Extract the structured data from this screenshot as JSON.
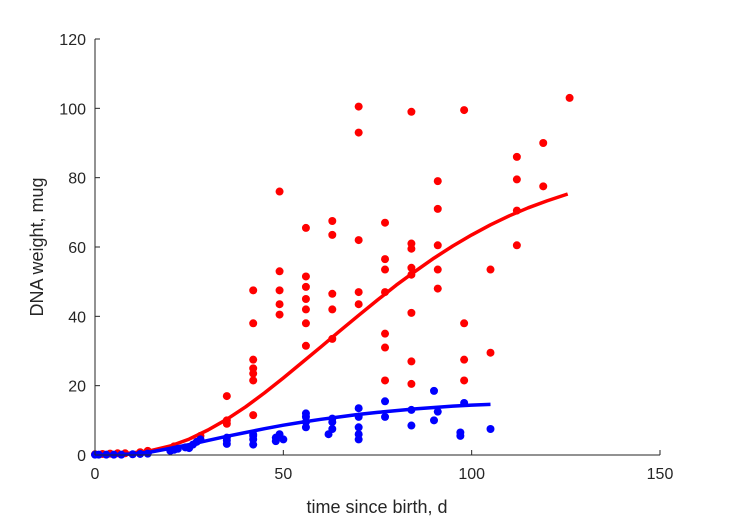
{
  "chart_data": {
    "type": "scatter",
    "xlabel": "time since birth, d",
    "ylabel": "DNA weight, mug",
    "xlim": [
      0,
      150
    ],
    "ylim": [
      0,
      120
    ],
    "xticks": [
      0,
      50,
      100,
      150
    ],
    "yticks": [
      0,
      20,
      40,
      60,
      80,
      100,
      120
    ],
    "grid": false,
    "legend": "none",
    "series": [
      {
        "color": "#ff0000",
        "points": [
          [
            0,
            0.2
          ],
          [
            2,
            0.3
          ],
          [
            4,
            0.4
          ],
          [
            6,
            0.5
          ],
          [
            8,
            0.5
          ],
          [
            12,
            0.8
          ],
          [
            14,
            1.2
          ],
          [
            21,
            2.5
          ],
          [
            28,
            5.5
          ],
          [
            35,
            17
          ],
          [
            35,
            10
          ],
          [
            35,
            9
          ],
          [
            42,
            47.5
          ],
          [
            42,
            38
          ],
          [
            42,
            27.5
          ],
          [
            42,
            25
          ],
          [
            42,
            23.5
          ],
          [
            42,
            21.5
          ],
          [
            42,
            11.5
          ],
          [
            49,
            76
          ],
          [
            49,
            53
          ],
          [
            49,
            47.5
          ],
          [
            49,
            43.5
          ],
          [
            49,
            40.5
          ],
          [
            56,
            65.5
          ],
          [
            56,
            51.5
          ],
          [
            56,
            48.5
          ],
          [
            56,
            45
          ],
          [
            56,
            42
          ],
          [
            56,
            38
          ],
          [
            56,
            31.5
          ],
          [
            63,
            67.5
          ],
          [
            63,
            63.5
          ],
          [
            63,
            46.5
          ],
          [
            63,
            42
          ],
          [
            63,
            33.5
          ],
          [
            70,
            100.5
          ],
          [
            70,
            93
          ],
          [
            70,
            62
          ],
          [
            70,
            47
          ],
          [
            70,
            43.5
          ],
          [
            77,
            67
          ],
          [
            77,
            56.5
          ],
          [
            77,
            53.5
          ],
          [
            77,
            47
          ],
          [
            77,
            35
          ],
          [
            77,
            31
          ],
          [
            77,
            21.5
          ],
          [
            84,
            99
          ],
          [
            84,
            61
          ],
          [
            84,
            59.5
          ],
          [
            84,
            54
          ],
          [
            84,
            52
          ],
          [
            84,
            41
          ],
          [
            84,
            27
          ],
          [
            84,
            20.5
          ],
          [
            91,
            79
          ],
          [
            91,
            71
          ],
          [
            91,
            60.5
          ],
          [
            91,
            53.5
          ],
          [
            91,
            48
          ],
          [
            98,
            99.5
          ],
          [
            98,
            38
          ],
          [
            98,
            27.5
          ],
          [
            98,
            21.5
          ],
          [
            105,
            53.5
          ],
          [
            105,
            29.5
          ],
          [
            112,
            86
          ],
          [
            112,
            79.5
          ],
          [
            112,
            70.5
          ],
          [
            112,
            60.5
          ],
          [
            119,
            90
          ],
          [
            119,
            77.5
          ],
          [
            126,
            103
          ]
        ],
        "fit": [
          [
            0,
            0
          ],
          [
            5,
            0.2
          ],
          [
            10,
            0.6
          ],
          [
            15,
            1.3
          ],
          [
            20,
            2.6
          ],
          [
            25,
            4.6
          ],
          [
            30,
            7.2
          ],
          [
            35,
            10.3
          ],
          [
            40,
            13.9
          ],
          [
            45,
            17.9
          ],
          [
            50,
            22.2
          ],
          [
            55,
            26.7
          ],
          [
            60,
            31.2
          ],
          [
            65,
            35.8
          ],
          [
            70,
            40.3
          ],
          [
            75,
            44.7
          ],
          [
            80,
            49.0
          ],
          [
            85,
            53.0
          ],
          [
            90,
            56.8
          ],
          [
            95,
            60.3
          ],
          [
            100,
            63.5
          ],
          [
            105,
            66.4
          ],
          [
            110,
            69.0
          ],
          [
            115,
            71.3
          ],
          [
            120,
            73.3
          ],
          [
            125.5,
            75.3
          ]
        ]
      },
      {
        "color": "#0000ff",
        "points": [
          [
            0,
            0.1
          ],
          [
            1,
            0.1
          ],
          [
            3,
            0.1
          ],
          [
            5,
            0.1
          ],
          [
            7,
            0.1
          ],
          [
            10,
            0.2
          ],
          [
            12,
            0.3
          ],
          [
            14,
            0.4
          ],
          [
            20,
            1.2
          ],
          [
            21,
            1.5
          ],
          [
            22,
            1.8
          ],
          [
            24,
            2.2
          ],
          [
            25,
            2.0
          ],
          [
            26,
            3.0
          ],
          [
            27,
            3.8
          ],
          [
            28,
            4.5
          ],
          [
            35,
            3.2
          ],
          [
            35,
            4.2
          ],
          [
            35,
            5.0
          ],
          [
            42,
            3.0
          ],
          [
            42,
            4.5
          ],
          [
            42,
            5.5
          ],
          [
            42,
            6.0
          ],
          [
            48,
            4.0
          ],
          [
            48,
            5.0
          ],
          [
            49,
            6.0
          ],
          [
            50,
            4.5
          ],
          [
            56,
            8.0
          ],
          [
            56,
            9.5
          ],
          [
            56,
            11.0
          ],
          [
            56,
            12.0
          ],
          [
            62,
            6.0
          ],
          [
            63,
            7.5
          ],
          [
            63,
            9.5
          ],
          [
            63,
            10.5
          ],
          [
            70,
            4.5
          ],
          [
            70,
            6.0
          ],
          [
            70,
            8.0
          ],
          [
            70,
            11.0
          ],
          [
            70,
            13.5
          ],
          [
            77,
            11.0
          ],
          [
            77,
            15.5
          ],
          [
            84,
            8.5
          ],
          [
            84,
            13.0
          ],
          [
            90,
            10.0
          ],
          [
            90,
            18.5
          ],
          [
            91,
            12.5
          ],
          [
            97,
            5.5
          ],
          [
            97,
            6.5
          ],
          [
            98,
            15.0
          ],
          [
            105,
            7.5
          ]
        ],
        "fit": [
          [
            0,
            0
          ],
          [
            5,
            0.1
          ],
          [
            10,
            0.3
          ],
          [
            15,
            0.9
          ],
          [
            20,
            1.9
          ],
          [
            25,
            3.0
          ],
          [
            30,
            4.2
          ],
          [
            35,
            5.4
          ],
          [
            40,
            6.5
          ],
          [
            45,
            7.6
          ],
          [
            50,
            8.6
          ],
          [
            55,
            9.5
          ],
          [
            60,
            10.3
          ],
          [
            65,
            11.0
          ],
          [
            70,
            11.7
          ],
          [
            75,
            12.3
          ],
          [
            80,
            12.8
          ],
          [
            85,
            13.3
          ],
          [
            90,
            13.7
          ],
          [
            95,
            14.1
          ],
          [
            100,
            14.4
          ],
          [
            105,
            14.6
          ]
        ]
      }
    ]
  }
}
